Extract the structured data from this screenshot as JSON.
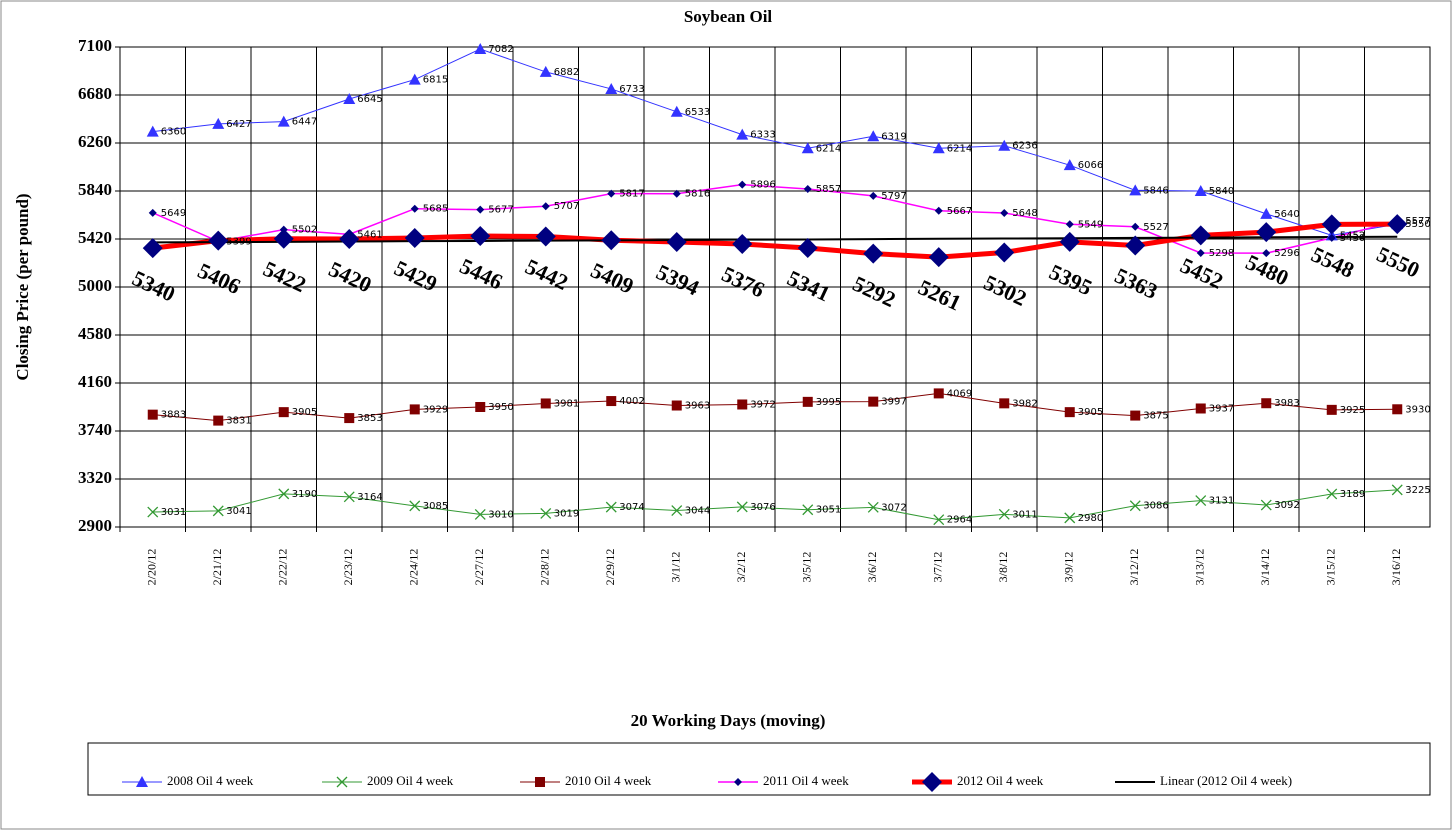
{
  "chart_data": {
    "type": "line",
    "title": "Soybean Oil",
    "x_label": "20 Working Days (moving)",
    "y_label": "Closing Price (per pound)",
    "categories": [
      "2/20/12",
      "2/21/12",
      "2/22/12",
      "2/23/12",
      "2/24/12",
      "2/27/12",
      "2/28/12",
      "2/29/12",
      "3/1/12",
      "3/2/12",
      "3/5/12",
      "3/6/12",
      "3/7/12",
      "3/8/12",
      "3/9/12",
      "3/12/12",
      "3/13/12",
      "3/14/12",
      "3/15/12",
      "3/16/12"
    ],
    "ylim": [
      2900,
      7100
    ],
    "yticks": [
      2900,
      3320,
      3740,
      4160,
      4580,
      5000,
      5420,
      5840,
      6260,
      6680,
      7100
    ],
    "grid": true,
    "legend": "bottom",
    "series": [
      {
        "name": "2008 Oil 4 week",
        "color": "#3333ff",
        "marker": "triangle",
        "width": 1,
        "data_labels": "small",
        "values": [
          6360,
          6427,
          6447,
          6645,
          6815,
          7082,
          6882,
          6733,
          6533,
          6333,
          6214,
          6319,
          6214,
          6236,
          6066,
          5846,
          5840,
          5640,
          5452,
          5550
        ]
      },
      {
        "name": "2009 Oil 4 week",
        "color": "#339933",
        "marker": "x",
        "width": 1,
        "data_labels": "small",
        "values": [
          3031,
          3041,
          3190,
          3164,
          3085,
          3010,
          3019,
          3074,
          3044,
          3076,
          3051,
          3072,
          2964,
          3011,
          2980,
          3086,
          3131,
          3092,
          3189,
          3225
        ]
      },
      {
        "name": "2010 Oil 4 week",
        "color": "#800000",
        "marker": "square",
        "width": 1,
        "data_labels": "small",
        "values": [
          3883,
          3831,
          3905,
          3853,
          3929,
          3950,
          3981,
          4002,
          3963,
          3972,
          3995,
          3997,
          4069,
          3982,
          3905,
          3875,
          3937,
          3983,
          3925,
          3930
        ]
      },
      {
        "name": "2011 Oil 4 week",
        "color": "#ff00ff",
        "marker": "diamond-small",
        "width": 1.5,
        "data_labels": "small",
        "values": [
          5649,
          5399,
          5502,
          5461,
          5685,
          5677,
          5707,
          5817,
          5816,
          5896,
          5857,
          5797,
          5667,
          5648,
          5549,
          5527,
          5298,
          5296,
          5430,
          5577
        ]
      },
      {
        "name": "2012 Oil 4 week",
        "color": "#ff0000",
        "marker": "diamond-large",
        "width": 5,
        "data_labels": "large",
        "values": [
          5340,
          5406,
          5422,
          5420,
          5429,
          5446,
          5442,
          5409,
          5394,
          5376,
          5341,
          5292,
          5261,
          5302,
          5395,
          5363,
          5452,
          5480,
          5548,
          5550
        ]
      },
      {
        "name": "Linear (2012 Oil 4 week)",
        "color": "#000000",
        "marker": "none",
        "width": 2,
        "data_labels": "none",
        "values": [
          5390,
          5393,
          5395,
          5398,
          5401,
          5403,
          5406,
          5408,
          5411,
          5414,
          5416,
          5419,
          5422,
          5424,
          5427,
          5430,
          5432,
          5435,
          5437,
          5440
        ]
      }
    ]
  }
}
